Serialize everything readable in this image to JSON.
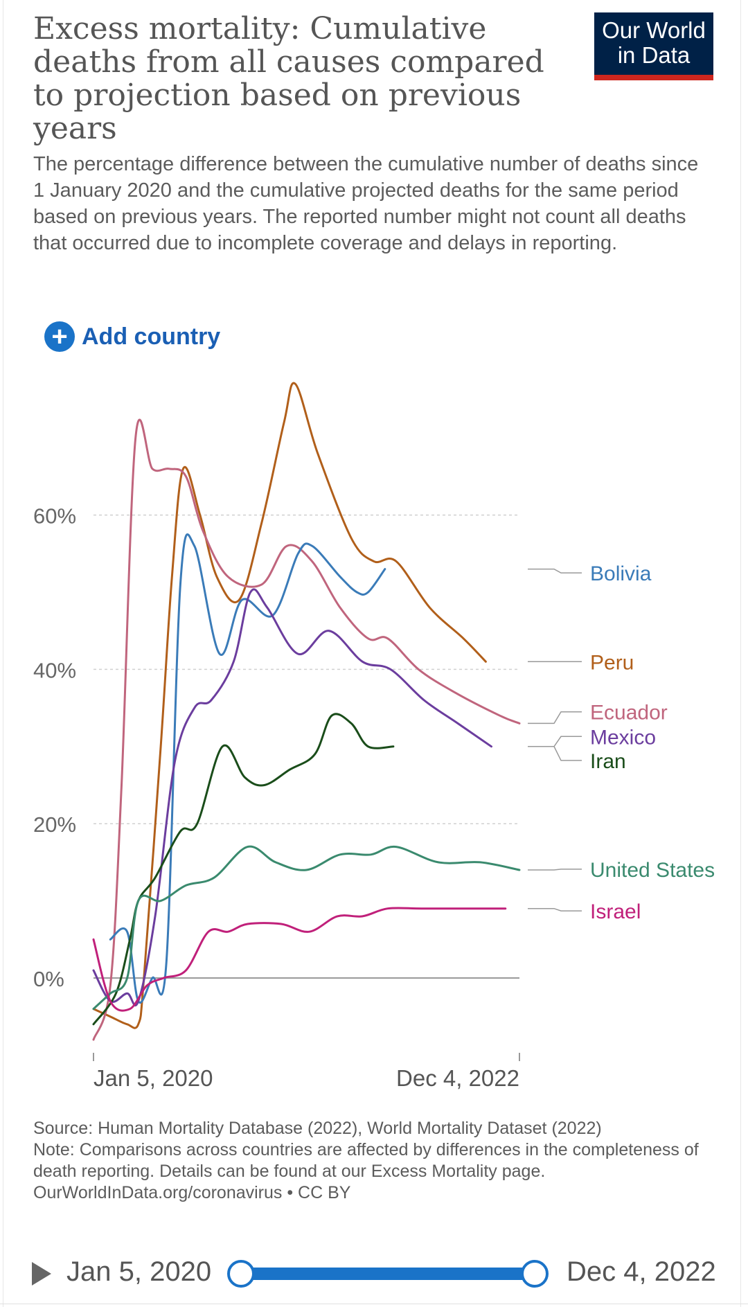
{
  "header": {
    "title": "Excess mortality: Cumulative deaths from all causes compared to projection based on previous years",
    "subtitle": "The percentage difference between the cumulative number of deaths since 1 January 2020 and the cumulative projected deaths for the same period based on previous years. The reported number might not count all deaths that occurred due to incomplete coverage and delays in reporting.",
    "logo_line1": "Our World",
    "logo_line2": "in Data"
  },
  "controls": {
    "add_country_label": "Add country"
  },
  "chart_data": {
    "type": "line",
    "x_start_label": "Jan 5, 2020",
    "x_end_label": "Dec 4, 2022",
    "x_range": [
      "2020-01-05",
      "2022-12-04"
    ],
    "ylim": [
      -8,
      77
    ],
    "y_ticks": [
      {
        "value": 0,
        "label": "0%"
      },
      {
        "value": 20,
        "label": "20%"
      },
      {
        "value": 40,
        "label": "40%"
      },
      {
        "value": 60,
        "label": "60%"
      }
    ],
    "grid": "horizontal-dashed",
    "legend": "right-line-labels",
    "series": [
      {
        "name": "Peru",
        "color": "#b15f1a",
        "points": [
          [
            "2020-01-05",
            -4
          ],
          [
            "2020-02-16",
            -5
          ],
          [
            "2020-03-29",
            -6
          ],
          [
            "2020-04-26",
            -6
          ],
          [
            "2020-05-10",
            0
          ],
          [
            "2020-06-21",
            30
          ],
          [
            "2020-07-19",
            52
          ],
          [
            "2020-08-16",
            66
          ],
          [
            "2020-09-27",
            60
          ],
          [
            "2020-11-08",
            52
          ],
          [
            "2021-01-03",
            49
          ],
          [
            "2021-02-28",
            59
          ],
          [
            "2021-04-25",
            72
          ],
          [
            "2021-05-23",
            77
          ],
          [
            "2021-07-18",
            68
          ],
          [
            "2021-10-10",
            57
          ],
          [
            "2021-12-05",
            54
          ],
          [
            "2022-01-30",
            54
          ],
          [
            "2022-04-24",
            48
          ],
          [
            "2022-07-17",
            44
          ],
          [
            "2022-09-11",
            41
          ]
        ]
      },
      {
        "name": "Ecuador",
        "color": "#c0657d",
        "points": [
          [
            "2020-01-05",
            -8
          ],
          [
            "2020-02-16",
            -1
          ],
          [
            "2020-03-15",
            25
          ],
          [
            "2020-04-19",
            70
          ],
          [
            "2020-05-31",
            66
          ],
          [
            "2020-07-12",
            66
          ],
          [
            "2020-08-23",
            65
          ],
          [
            "2020-10-04",
            58
          ],
          [
            "2020-12-06",
            52
          ],
          [
            "2021-02-28",
            51
          ],
          [
            "2021-05-02",
            56
          ],
          [
            "2021-07-04",
            54
          ],
          [
            "2021-09-12",
            48
          ],
          [
            "2021-11-21",
            44
          ],
          [
            "2022-01-09",
            44
          ],
          [
            "2022-03-27",
            40
          ],
          [
            "2022-06-26",
            37
          ],
          [
            "2022-10-16",
            34
          ],
          [
            "2022-12-04",
            33
          ]
        ]
      },
      {
        "name": "Bolivia",
        "color": "#3a7bb8",
        "points": [
          [
            "2020-02-16",
            5
          ],
          [
            "2020-03-29",
            6
          ],
          [
            "2020-04-26",
            -3
          ],
          [
            "2020-05-31",
            0
          ],
          [
            "2020-07-05",
            2
          ],
          [
            "2020-08-09",
            51
          ],
          [
            "2020-09-13",
            56
          ],
          [
            "2020-11-15",
            42
          ],
          [
            "2021-01-10",
            49
          ],
          [
            "2021-03-28",
            47
          ],
          [
            "2021-05-30",
            55
          ],
          [
            "2021-07-04",
            56
          ],
          [
            "2021-09-12",
            52
          ],
          [
            "2021-10-24",
            50
          ],
          [
            "2021-11-21",
            50
          ],
          [
            "2022-01-02",
            53
          ]
        ]
      },
      {
        "name": "Mexico",
        "color": "#6b3d9e",
        "points": [
          [
            "2020-01-05",
            1
          ],
          [
            "2020-02-16",
            -3
          ],
          [
            "2020-03-29",
            -2
          ],
          [
            "2020-04-26",
            -3
          ],
          [
            "2020-06-07",
            8
          ],
          [
            "2020-07-26",
            28
          ],
          [
            "2020-09-13",
            35
          ],
          [
            "2020-10-25",
            36
          ],
          [
            "2020-12-20",
            41
          ],
          [
            "2021-01-31",
            50
          ],
          [
            "2021-03-14",
            48
          ],
          [
            "2021-05-30",
            42
          ],
          [
            "2021-08-15",
            45
          ],
          [
            "2021-11-07",
            41
          ],
          [
            "2022-01-16",
            40
          ],
          [
            "2022-04-10",
            36
          ],
          [
            "2022-07-03",
            33
          ],
          [
            "2022-09-25",
            30
          ]
        ]
      },
      {
        "name": "Iran",
        "color": "#1a4d1a",
        "points": [
          [
            "2020-01-05",
            -6
          ],
          [
            "2020-03-01",
            -2
          ],
          [
            "2020-04-05",
            5
          ],
          [
            "2020-04-26",
            10
          ],
          [
            "2020-06-07",
            13
          ],
          [
            "2020-08-09",
            19
          ],
          [
            "2020-09-20",
            20
          ],
          [
            "2020-11-22",
            30
          ],
          [
            "2021-01-17",
            26
          ],
          [
            "2021-03-07",
            25
          ],
          [
            "2021-05-09",
            27
          ],
          [
            "2021-07-11",
            29
          ],
          [
            "2021-08-22",
            34
          ],
          [
            "2021-10-10",
            33
          ],
          [
            "2021-11-21",
            30
          ],
          [
            "2022-01-23",
            30
          ]
        ]
      },
      {
        "name": "United States",
        "color": "#3a8a6e",
        "points": [
          [
            "2020-01-05",
            -4
          ],
          [
            "2020-02-16",
            -2
          ],
          [
            "2020-03-29",
            0
          ],
          [
            "2020-04-26",
            10
          ],
          [
            "2020-06-21",
            10
          ],
          [
            "2020-08-23",
            12
          ],
          [
            "2020-11-01",
            13
          ],
          [
            "2021-01-24",
            17
          ],
          [
            "2021-04-04",
            15
          ],
          [
            "2021-06-20",
            14
          ],
          [
            "2021-09-12",
            16
          ],
          [
            "2021-11-28",
            16
          ],
          [
            "2022-01-30",
            17
          ],
          [
            "2022-05-15",
            15
          ],
          [
            "2022-08-28",
            15
          ],
          [
            "2022-12-04",
            14
          ]
        ]
      },
      {
        "name": "Israel",
        "color": "#c0207a",
        "points": [
          [
            "2020-01-05",
            5
          ],
          [
            "2020-02-16",
            -3
          ],
          [
            "2020-04-05",
            -4
          ],
          [
            "2020-05-17",
            -1
          ],
          [
            "2020-06-28",
            0
          ],
          [
            "2020-08-23",
            1
          ],
          [
            "2020-10-18",
            6
          ],
          [
            "2020-12-06",
            6
          ],
          [
            "2021-01-24",
            7
          ],
          [
            "2021-04-18",
            7
          ],
          [
            "2021-06-27",
            6
          ],
          [
            "2021-09-05",
            8
          ],
          [
            "2021-11-07",
            8
          ],
          [
            "2022-01-09",
            9
          ],
          [
            "2022-04-03",
            9
          ],
          [
            "2022-07-24",
            9
          ],
          [
            "2022-10-30",
            9
          ]
        ]
      }
    ],
    "labels": [
      {
        "series": "Bolivia",
        "text": "Bolivia",
        "value": 52.5
      },
      {
        "series": "Peru",
        "text": "Peru",
        "value": 41
      },
      {
        "series": "Ecuador",
        "text": "Ecuador",
        "value": 34.5
      },
      {
        "series": "Mexico",
        "text": "Mexico",
        "value": 31.3
      },
      {
        "series": "Iran",
        "text": "Iran",
        "value": 28.2
      },
      {
        "series": "United States",
        "text": "United States",
        "value": 14.1
      },
      {
        "series": "Israel",
        "text": "Israel",
        "value": 8.7
      }
    ]
  },
  "footer": {
    "source": "Source: Human Mortality Database (2022), World Mortality Dataset (2022)",
    "note": "Note: Comparisons across countries are affected by differences in the completeness of death reporting. Details can be found at our Excess Mortality page.",
    "credit": "OurWorldInData.org/coronavirus • CC BY"
  },
  "timeline": {
    "start_label": "Jan 5, 2020",
    "end_label": "Dec 4, 2022"
  }
}
